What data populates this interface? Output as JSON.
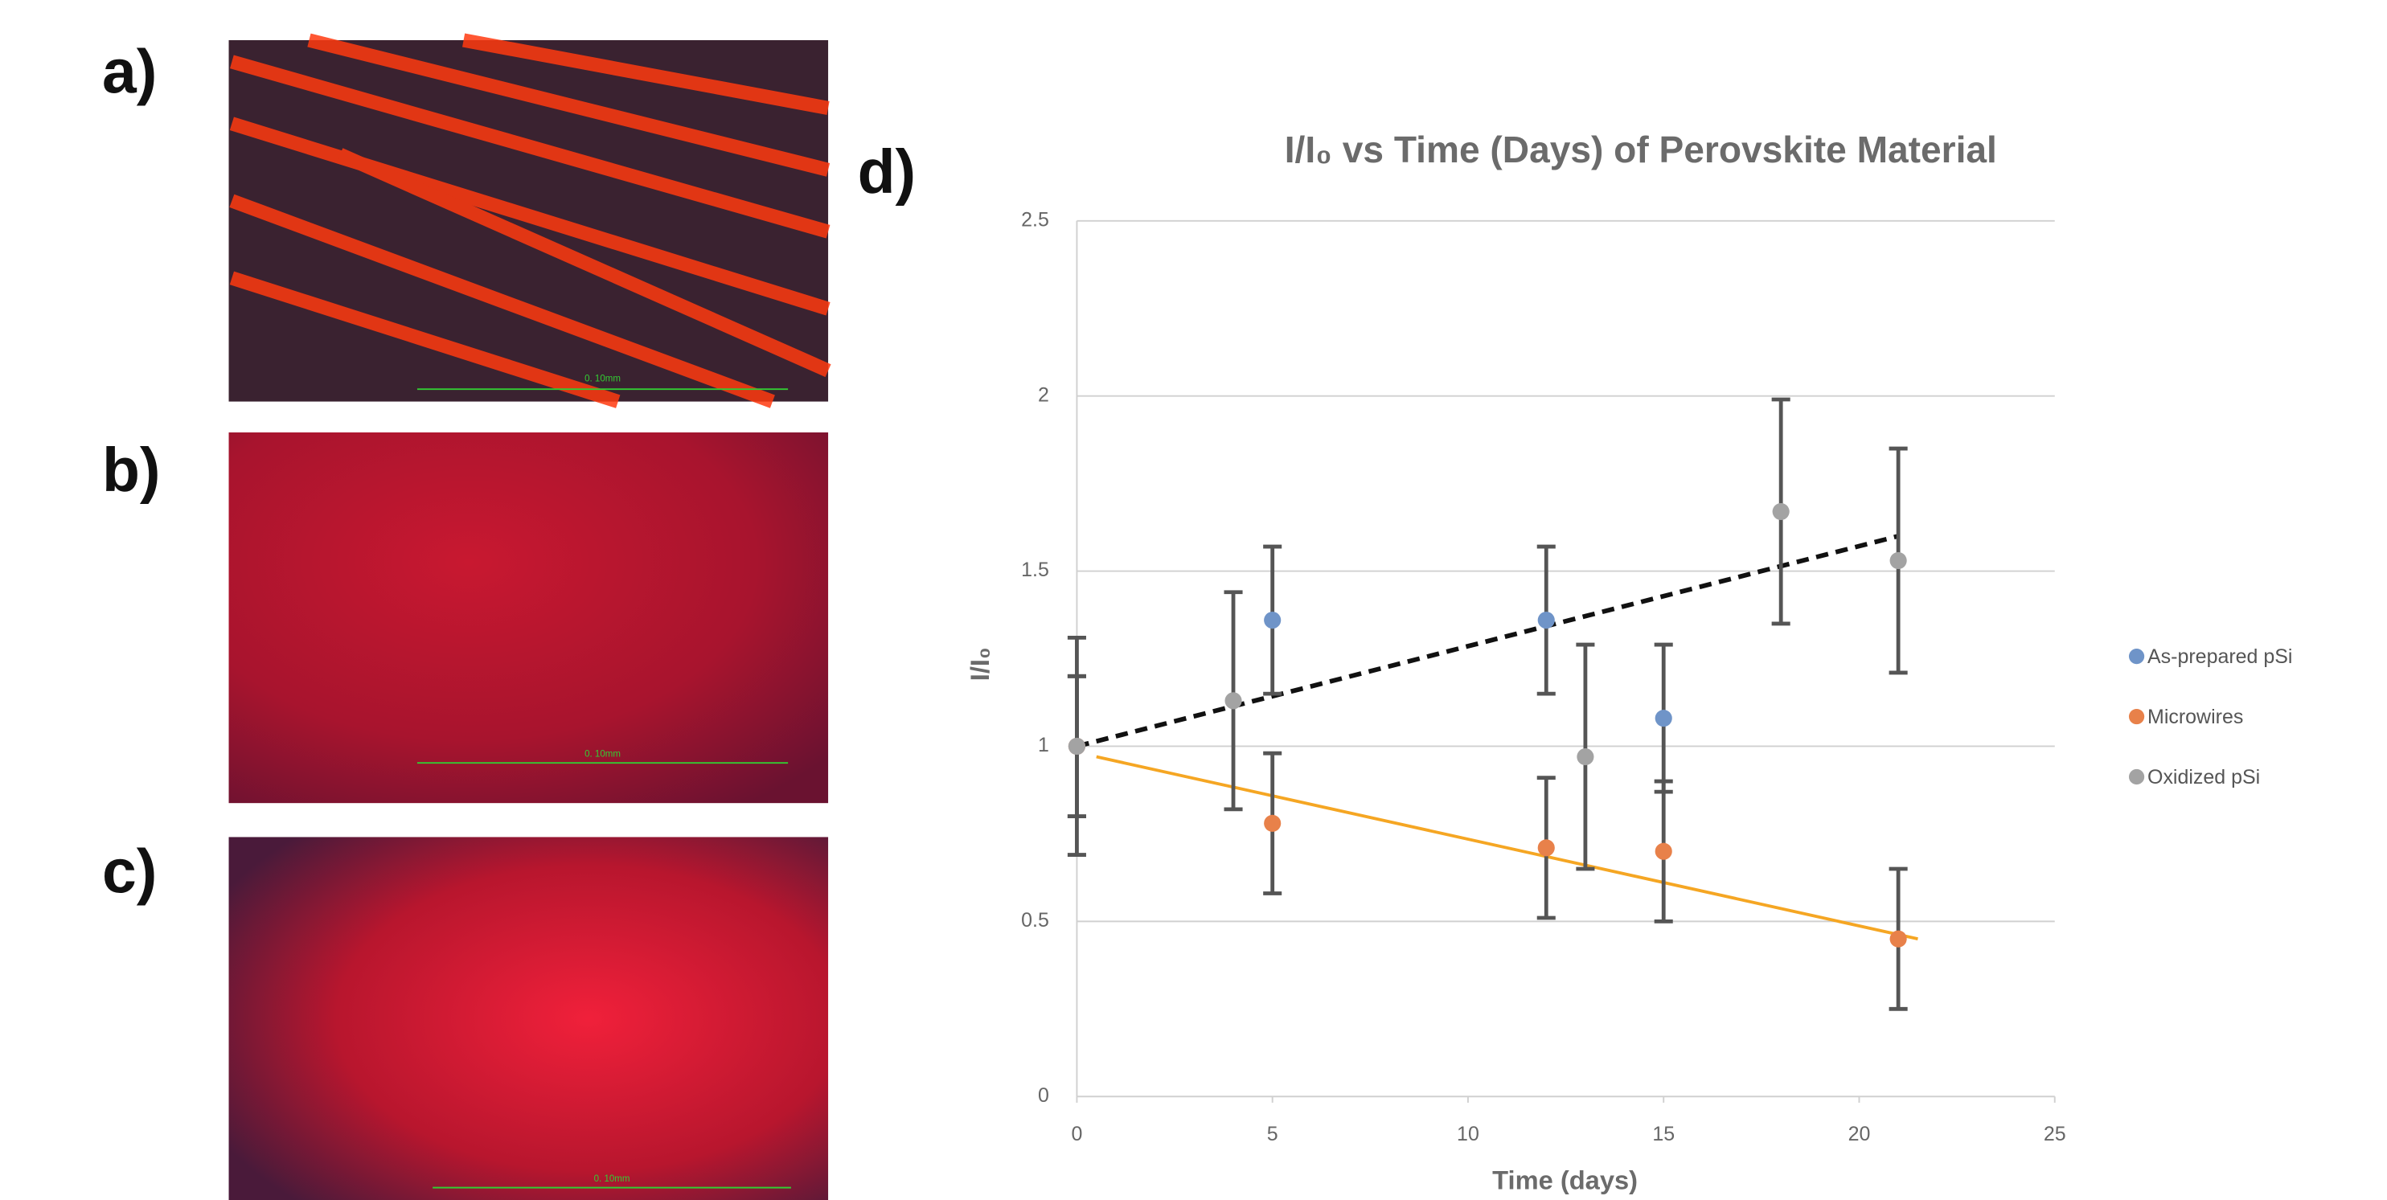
{
  "panels": [
    "a)",
    "b)",
    "c)",
    "d)"
  ],
  "image_scale_labels": [
    "0. 10mm",
    "0. 10mm",
    "0. 10mm"
  ],
  "chart_data": {
    "type": "scatter",
    "title": "I/I₀ vs Time (Days) of Perovskite Material",
    "x_label": "Time (days)",
    "y_label": "I/I₀",
    "xlim": [
      0,
      25
    ],
    "xticks": [
      0,
      5,
      10,
      15,
      20,
      25
    ],
    "ylim": [
      0,
      2.5
    ],
    "yticks": [
      0,
      0.5,
      1,
      1.5,
      2,
      2.5
    ],
    "grid": true,
    "legend": "right",
    "error_color": "#555555",
    "series": [
      {
        "name": "As-prepared pSi",
        "color": "#6f94c8",
        "x": [
          0,
          5,
          12,
          15
        ],
        "values": [
          1,
          1.36,
          1.36,
          1.08
        ],
        "errors": [
          0.2,
          0.21,
          0.21,
          0.21
        ]
      },
      {
        "name": "Microwires",
        "color": "#e8814a",
        "x": [
          0,
          5,
          12,
          15,
          21
        ],
        "values": [
          1,
          0.78,
          0.71,
          0.7,
          0.45
        ],
        "errors": [
          0.2,
          0.2,
          0.2,
          0.2,
          0.2
        ]
      },
      {
        "name": "Oxidized pSi",
        "color": "#a3a3a3",
        "x": [
          0,
          4,
          13,
          18,
          21
        ],
        "values": [
          1,
          1.13,
          0.97,
          1.67,
          1.53
        ],
        "errors": [
          0.31,
          0.31,
          0.32,
          0.32,
          0.32
        ]
      }
    ],
    "trendlines": [
      {
        "color": "#111111",
        "dashed": true,
        "x": [
          0,
          21
        ],
        "values": [
          1,
          1.6
        ]
      },
      {
        "color": "#f5a623",
        "dashed": false,
        "x": [
          0.5,
          21.5
        ],
        "values": [
          0.97,
          0.45
        ]
      }
    ]
  }
}
